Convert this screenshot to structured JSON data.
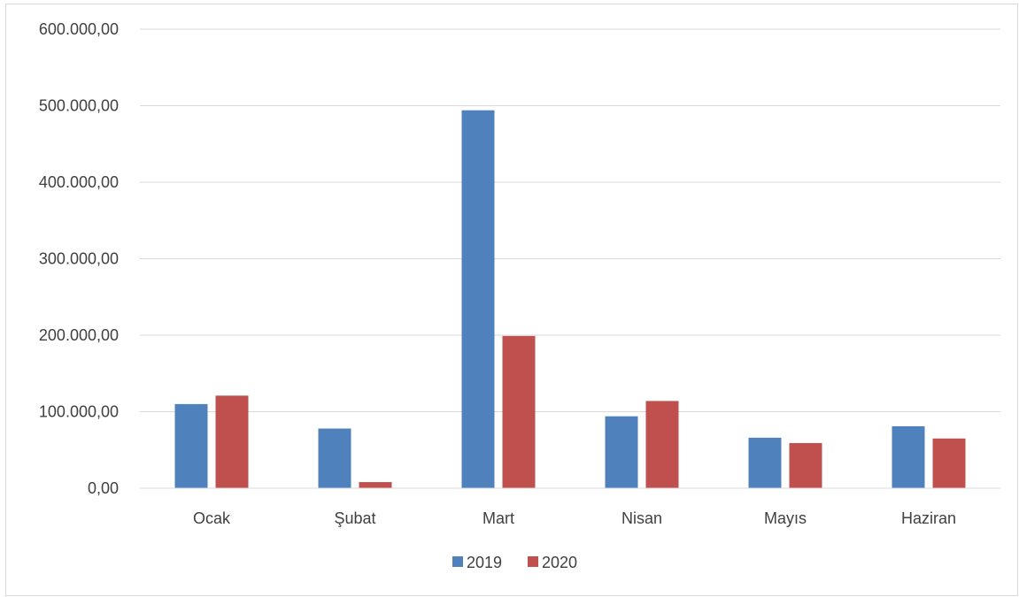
{
  "chart_data": {
    "type": "bar",
    "categories": [
      "Ocak",
      "Şubat",
      "Mart",
      "Nisan",
      "Mayıs",
      "Haziran"
    ],
    "series": [
      {
        "name": "2019",
        "color": "#4f81bd",
        "values": [
          110000,
          78000,
          494000,
          94000,
          66000,
          81000
        ]
      },
      {
        "name": "2020",
        "color": "#c0504d",
        "values": [
          121000,
          8000,
          199000,
          114000,
          59000,
          65000
        ]
      }
    ],
    "ylim": [
      0,
      600000
    ],
    "yticks": [
      0,
      100000,
      200000,
      300000,
      400000,
      500000,
      600000
    ],
    "ytick_labels": [
      "0,00",
      "100.000,00",
      "200.000,00",
      "300.000,00",
      "400.000,00",
      "500.000,00",
      "600.000,00"
    ],
    "grid": true,
    "legend_position": "bottom",
    "title": "",
    "xlabel": "",
    "ylabel": ""
  }
}
